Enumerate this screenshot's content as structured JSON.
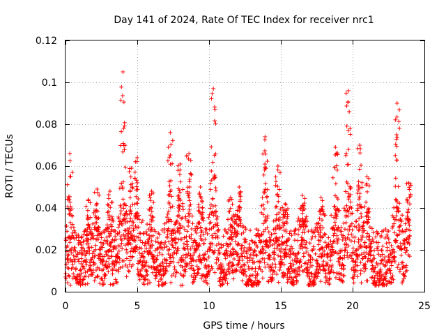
{
  "chart_data": {
    "type": "scatter",
    "title": "Day 141 of 2024, Rate Of TEC Index for receiver nrc1",
    "xlabel": "GPS time / hours",
    "ylabel": "ROTI / TECUs",
    "xlim": [
      0,
      25
    ],
    "ylim": [
      0,
      0.12
    ],
    "xticks": [
      0,
      5,
      10,
      15,
      20,
      25
    ],
    "xtick_labels": [
      "0",
      "5",
      "10",
      "15",
      "20",
      "25"
    ],
    "yticks": [
      0,
      0.02,
      0.04,
      0.06,
      0.08,
      0.1,
      0.12
    ],
    "ytick_labels": [
      "0",
      "0.02",
      "0.04",
      "0.06",
      "0.08",
      "0.1",
      "0.12"
    ],
    "grid": true,
    "marker": "+",
    "marker_color": "#ff0000",
    "series": [
      {
        "x_range": [
          0,
          24
        ],
        "typical_y_range": [
          0.003,
          0.03
        ],
        "peaks": [
          {
            "x": 0.3,
            "y": 0.066
          },
          {
            "x": 1.6,
            "y": 0.044
          },
          {
            "x": 2.2,
            "y": 0.049
          },
          {
            "x": 3.1,
            "y": 0.048
          },
          {
            "x": 4.0,
            "y": 0.105
          },
          {
            "x": 4.6,
            "y": 0.059
          },
          {
            "x": 5.0,
            "y": 0.064
          },
          {
            "x": 6.0,
            "y": 0.048
          },
          {
            "x": 7.3,
            "y": 0.076
          },
          {
            "x": 8.0,
            "y": 0.061
          },
          {
            "x": 8.6,
            "y": 0.066
          },
          {
            "x": 9.4,
            "y": 0.05
          },
          {
            "x": 10.3,
            "y": 0.097
          },
          {
            "x": 11.5,
            "y": 0.045
          },
          {
            "x": 12.1,
            "y": 0.05
          },
          {
            "x": 13.9,
            "y": 0.074
          },
          {
            "x": 14.8,
            "y": 0.06
          },
          {
            "x": 15.3,
            "y": 0.042
          },
          {
            "x": 16.5,
            "y": 0.046
          },
          {
            "x": 17.8,
            "y": 0.045
          },
          {
            "x": 18.8,
            "y": 0.069
          },
          {
            "x": 19.7,
            "y": 0.096
          },
          {
            "x": 20.5,
            "y": 0.07
          },
          {
            "x": 21.0,
            "y": 0.055
          },
          {
            "x": 23.1,
            "y": 0.09
          },
          {
            "x": 23.9,
            "y": 0.052
          }
        ]
      }
    ]
  }
}
